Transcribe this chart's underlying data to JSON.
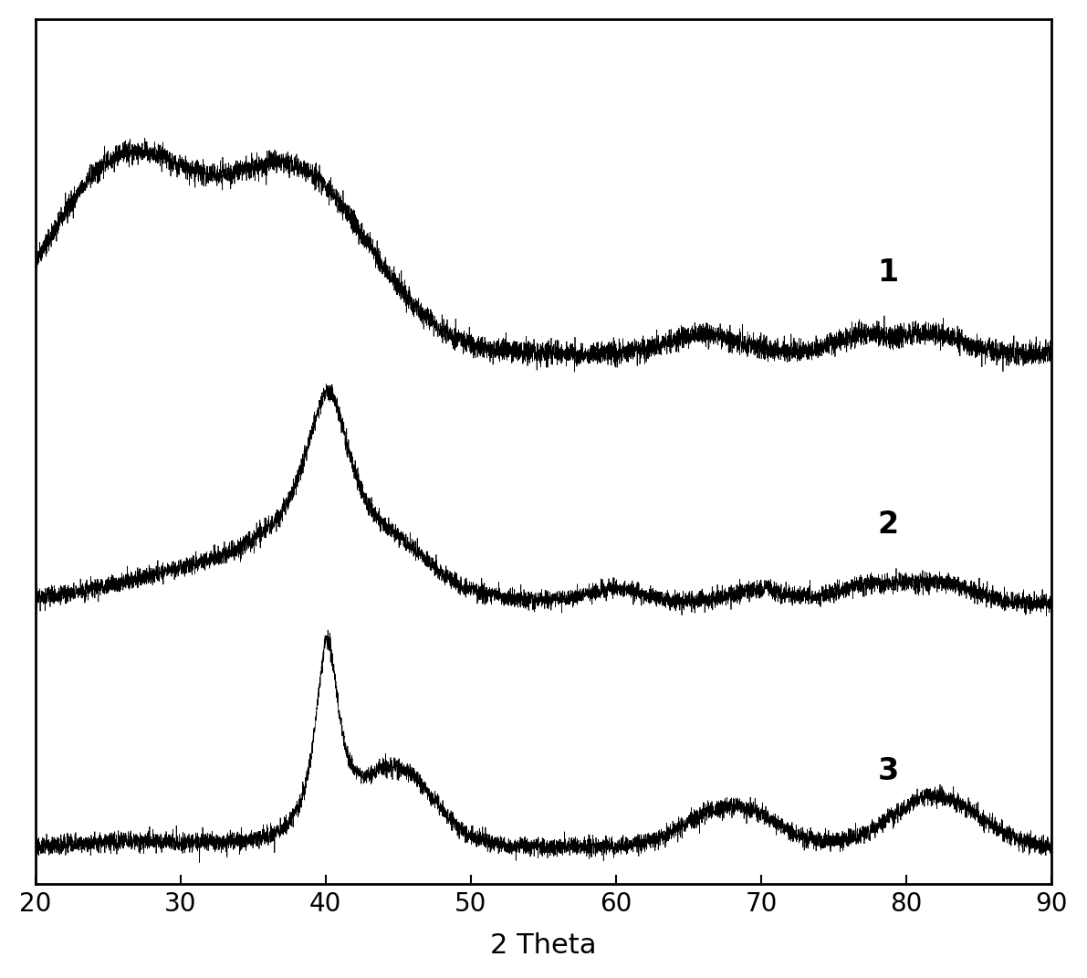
{
  "title": "",
  "xlabel": "2 Theta",
  "ylabel": "",
  "xlim": [
    20,
    90
  ],
  "x_ticks": [
    20,
    30,
    40,
    50,
    60,
    70,
    80,
    90
  ],
  "background_color": "#ffffff",
  "line_color": "#000000",
  "seed": 42,
  "noise_scale": 0.008,
  "curve_offsets": [
    0.62,
    0.31,
    0.0
  ],
  "curve_scales": [
    0.28,
    0.28,
    0.28
  ]
}
